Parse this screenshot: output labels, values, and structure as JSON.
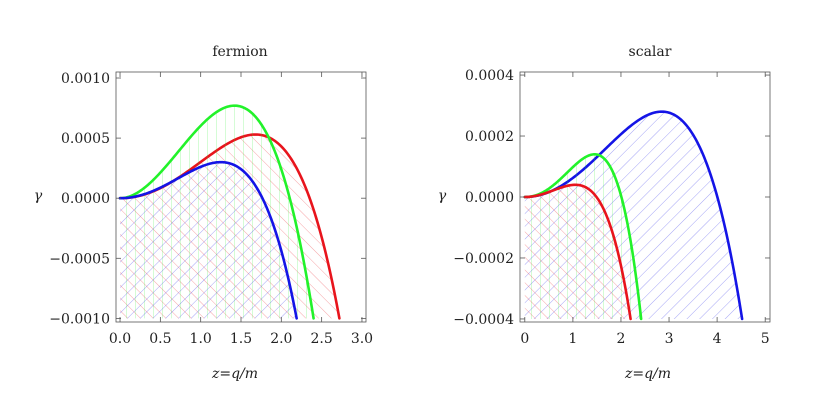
{
  "chart_data": [
    {
      "type": "line",
      "title": "fermion",
      "xlabel": "z=q/m",
      "ylabel": "γ",
      "xlim": [
        -0.05,
        3.05
      ],
      "ylim": [
        -0.00103,
        0.00105
      ],
      "xticks": [
        0.0,
        0.5,
        1.0,
        1.5,
        2.0,
        2.5,
        3.0
      ],
      "xtick_labels": [
        "0.0",
        "0.5",
        "1.0",
        "1.5",
        "2.0",
        "2.5",
        "3.0"
      ],
      "yticks": [
        -0.001,
        -0.0005,
        0.0,
        0.0005,
        0.001
      ],
      "ytick_labels": [
        "−0.0010",
        "−0.0005",
        "0.0000",
        "0.0005",
        "0.0010"
      ],
      "series": [
        {
          "name": "red",
          "color": "#e8141c",
          "hatch": "back",
          "peak": [
            1.68,
            0.00053
          ],
          "end": [
            2.72,
            -0.001
          ]
        },
        {
          "name": "green",
          "color": "#22f22a",
          "hatch": "vertical",
          "peak": [
            1.42,
            0.00077
          ],
          "end": [
            2.4,
            -0.001
          ]
        },
        {
          "name": "blue",
          "color": "#1414e6",
          "hatch": "forward",
          "peak": [
            1.25,
            0.0003
          ],
          "end": [
            2.19,
            -0.001
          ]
        }
      ]
    },
    {
      "type": "line",
      "title": "scalar",
      "xlabel": "z=q/m",
      "ylabel": "γ",
      "xlim": [
        -0.1,
        5.1
      ],
      "ylim": [
        -0.00041,
        0.00041
      ],
      "xticks": [
        0,
        1,
        2,
        3,
        4,
        5
      ],
      "xtick_labels": [
        "0",
        "1",
        "2",
        "3",
        "4",
        "5"
      ],
      "yticks": [
        -0.0004,
        -0.0002,
        0.0,
        0.0002,
        0.0004
      ],
      "ytick_labels": [
        "−0.0004",
        "−0.0002",
        "0.0000",
        "0.0002",
        "0.0004"
      ],
      "series": [
        {
          "name": "blue",
          "color": "#1414e6",
          "hatch": "forward",
          "peak": [
            2.85,
            0.00028
          ],
          "end": [
            4.52,
            -0.0004
          ]
        },
        {
          "name": "green",
          "color": "#22f22a",
          "hatch": "vertical",
          "peak": [
            1.45,
            0.00014
          ],
          "end": [
            2.42,
            -0.0004
          ]
        },
        {
          "name": "red",
          "color": "#e8141c",
          "hatch": "back",
          "peak": [
            1.05,
            4e-05
          ],
          "end": [
            2.2,
            -0.0004
          ]
        }
      ]
    }
  ]
}
